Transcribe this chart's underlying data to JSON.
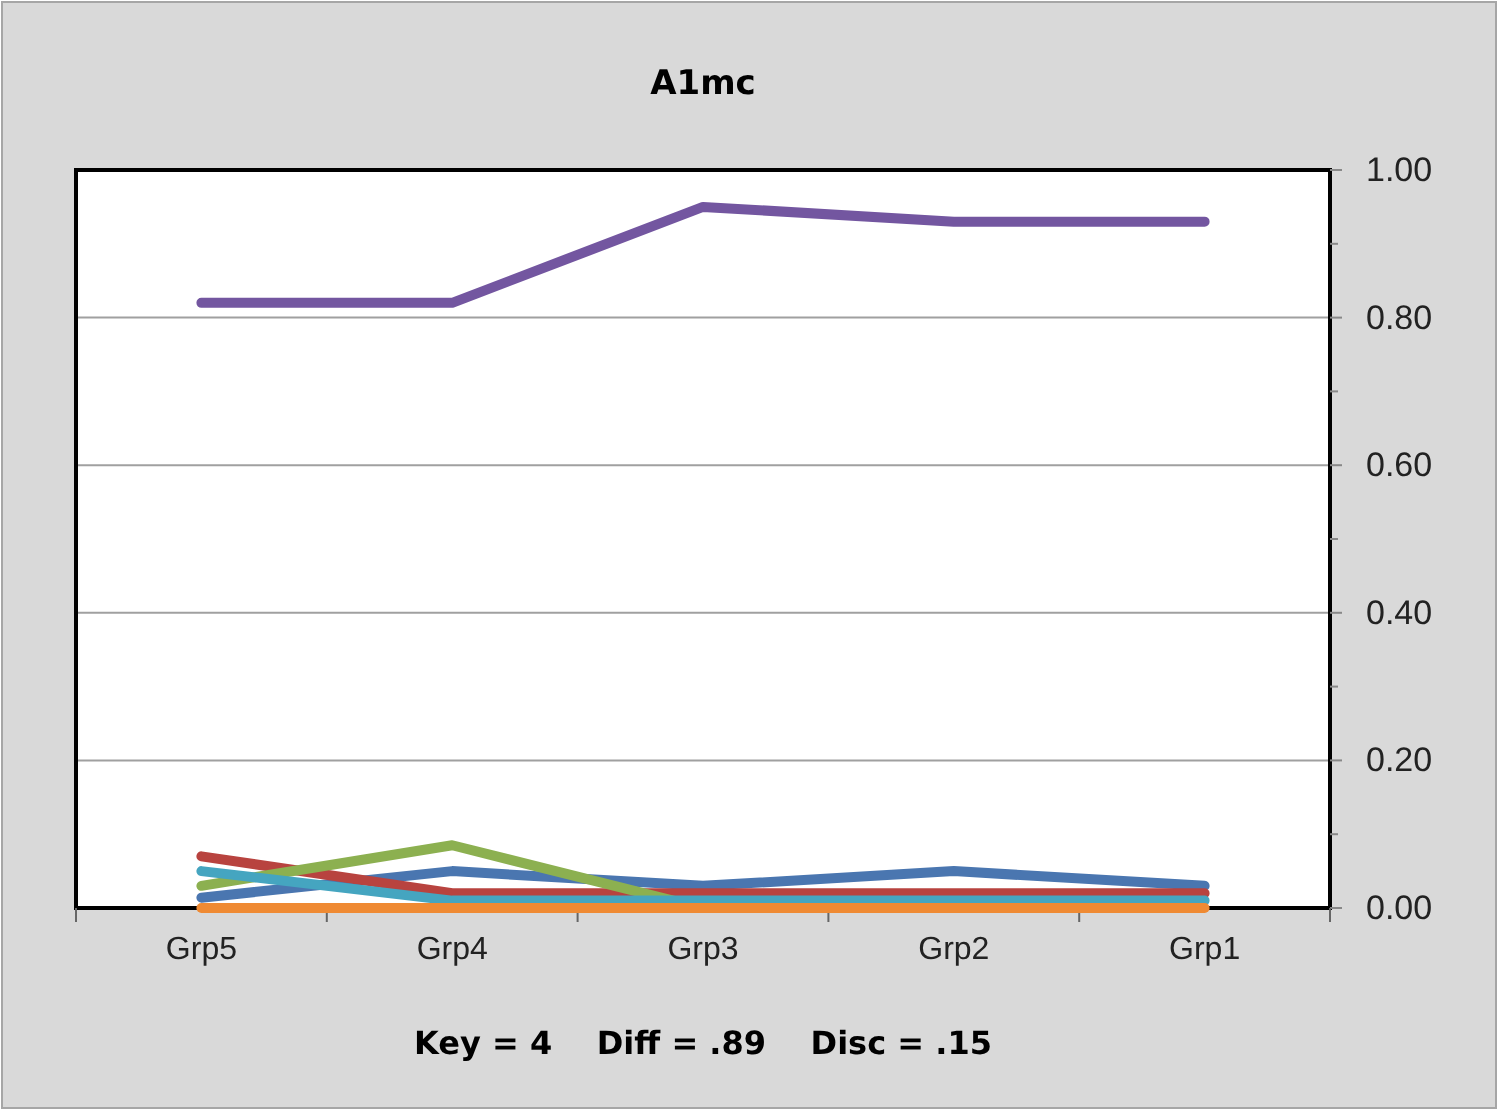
{
  "chart_data": {
    "type": "line",
    "title": "A1mc",
    "annotations": [
      "Key = 4    Diff = .89    Disc = .15"
    ],
    "categories": [
      "Grp5",
      "Grp4",
      "Grp3",
      "Grp2",
      "Grp1"
    ],
    "series": [
      {
        "color": "#4a76b0",
        "values": [
          0.014,
          0.05,
          0.03,
          0.05,
          0.03
        ]
      },
      {
        "color": "#b8433f",
        "values": [
          0.07,
          0.02,
          0.02,
          0.02,
          0.02
        ]
      },
      {
        "color": "#8cb050",
        "values": [
          0.03,
          0.085,
          0,
          null,
          null
        ]
      },
      {
        "color": "#7356a0",
        "values": [
          0.82,
          0.82,
          0.95,
          0.93,
          0.93
        ]
      },
      {
        "color": "#45a5c0",
        "values": [
          0.05,
          0.01,
          0.01,
          0.01,
          0.01
        ]
      },
      {
        "color": "#ef8a33",
        "values": [
          0,
          0,
          0,
          0,
          0
        ]
      }
    ],
    "ylim": [
      0,
      1
    ],
    "yticks": [
      {
        "value": 0,
        "label": "0.00"
      },
      {
        "value": 0.2,
        "label": "0.20"
      },
      {
        "value": 0.4,
        "label": "0.40"
      },
      {
        "value": 0.6,
        "label": "0.60"
      },
      {
        "value": 0.8,
        "label": "0.80"
      },
      {
        "value": 1,
        "label": "1.00"
      }
    ],
    "grid": "y",
    "marker": "none",
    "line_style": "solid"
  }
}
